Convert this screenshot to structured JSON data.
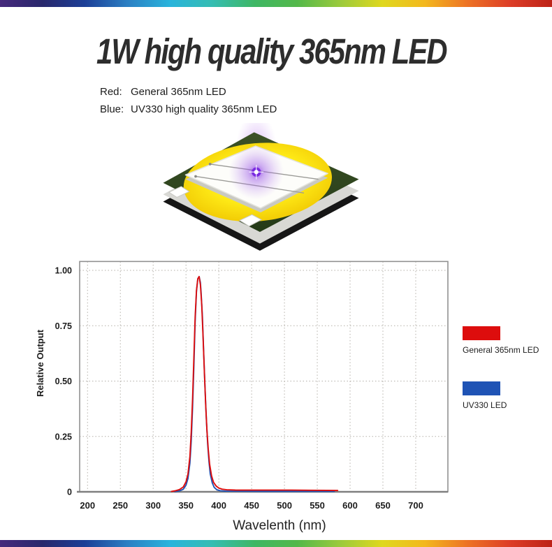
{
  "header": {
    "title": "1W high quality 365nm LED",
    "lines": [
      {
        "label": "Red:",
        "text": "General 365nm LED"
      },
      {
        "label": "Blue:",
        "text": "UV330 high quality 365nm LED"
      }
    ]
  },
  "decoration": {
    "chip_icon": "uv-led-chip",
    "rainbow_colors": [
      "#46297c",
      "#29286c",
      "#1c3f97",
      "#2b7fc3",
      "#29b4dc",
      "#35bdb2",
      "#3eb764",
      "#53b84a",
      "#9aca3c",
      "#dfd81e",
      "#f3b81d",
      "#ed7325",
      "#dd3e27",
      "#bd2217"
    ]
  },
  "legend": [
    {
      "label": "General 365nm LED",
      "color": "#dd0d0d"
    },
    {
      "label": "UV330 LED",
      "color": "#1f53b5"
    }
  ],
  "chart_data": {
    "type": "line",
    "title": "",
    "xlabel": "Wavelenth (nm)",
    "ylabel": "Relative Output",
    "xlim": [
      188,
      749
    ],
    "ylim": [
      0,
      1.04
    ],
    "x_ticks": [
      200,
      250,
      300,
      350,
      400,
      450,
      500,
      550,
      600,
      650,
      700
    ],
    "y_ticks": [
      {
        "value": 1.0,
        "label": "1.00"
      },
      {
        "value": 0.75,
        "label": "0.75"
      },
      {
        "value": 0.5,
        "label": "0.50"
      },
      {
        "value": 0.25,
        "label": "0.25"
      },
      {
        "value": 0,
        "label": "0"
      }
    ],
    "grid": true,
    "legend_position": "right-outside",
    "series": [
      {
        "name": "General 365nm LED",
        "color": "#dd0d0d",
        "peak_nm": 370,
        "peak_value": 0.97,
        "points": [
          [
            328,
            0.002
          ],
          [
            334,
            0.005
          ],
          [
            340,
            0.01
          ],
          [
            346,
            0.022
          ],
          [
            350,
            0.045
          ],
          [
            353,
            0.08
          ],
          [
            356,
            0.16
          ],
          [
            358,
            0.27
          ],
          [
            360,
            0.42
          ],
          [
            362,
            0.61
          ],
          [
            364,
            0.79
          ],
          [
            366,
            0.91
          ],
          [
            368,
            0.962
          ],
          [
            370,
            0.972
          ],
          [
            372,
            0.935
          ],
          [
            374,
            0.845
          ],
          [
            376,
            0.7
          ],
          [
            378,
            0.54
          ],
          [
            380,
            0.39
          ],
          [
            382,
            0.275
          ],
          [
            384,
            0.19
          ],
          [
            386,
            0.125
          ],
          [
            389,
            0.072
          ],
          [
            392,
            0.043
          ],
          [
            396,
            0.026
          ],
          [
            400,
            0.017
          ],
          [
            405,
            0.012
          ],
          [
            412,
            0.009
          ],
          [
            425,
            0.008
          ],
          [
            450,
            0.0075
          ],
          [
            480,
            0.0075
          ],
          [
            510,
            0.0075
          ],
          [
            540,
            0.007
          ],
          [
            565,
            0.0065
          ],
          [
            581,
            0.006
          ]
        ]
      },
      {
        "name": "UV330 LED",
        "color": "#1f53b5",
        "peak_nm": 370,
        "peak_value": 0.97,
        "points": [
          [
            333,
            0.001
          ],
          [
            340,
            0.004
          ],
          [
            346,
            0.012
          ],
          [
            350,
            0.03
          ],
          [
            353,
            0.06
          ],
          [
            356,
            0.13
          ],
          [
            358,
            0.23
          ],
          [
            360,
            0.38
          ],
          [
            362,
            0.57
          ],
          [
            364,
            0.77
          ],
          [
            366,
            0.905
          ],
          [
            368,
            0.962
          ],
          [
            370,
            0.972
          ],
          [
            372,
            0.945
          ],
          [
            373,
            0.9
          ],
          [
            375,
            0.79
          ],
          [
            377,
            0.63
          ],
          [
            379,
            0.47
          ],
          [
            381,
            0.33
          ],
          [
            383,
            0.215
          ],
          [
            385,
            0.135
          ],
          [
            387,
            0.08
          ],
          [
            390,
            0.04
          ],
          [
            393,
            0.02
          ],
          [
            397,
            0.009
          ],
          [
            402,
            0.005
          ],
          [
            410,
            0.003
          ],
          [
            430,
            0.0025
          ],
          [
            470,
            0.002
          ],
          [
            520,
            0.002
          ],
          [
            560,
            0.002
          ],
          [
            576,
            0.002
          ]
        ]
      }
    ]
  }
}
